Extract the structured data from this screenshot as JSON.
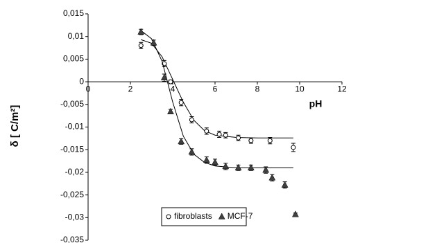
{
  "chart_data": {
    "type": "scatter",
    "xlabel": "pH",
    "ylabel": "δ [ C/m²]",
    "xlim": [
      0,
      12
    ],
    "xticks": [
      0,
      2,
      4,
      6,
      8,
      10,
      12
    ],
    "ylim": [
      -0.035,
      0.015
    ],
    "yticks": [
      {
        "value": 0.015,
        "label": "0,015"
      },
      {
        "value": 0.01,
        "label": "0,01"
      },
      {
        "value": 0.005,
        "label": "0,005"
      },
      0,
      {
        "value": -0.005,
        "label": "-0,005"
      },
      {
        "value": -0.01,
        "label": "-0,01"
      },
      {
        "value": -0.015,
        "label": "-0,015"
      },
      {
        "value": -0.02,
        "label": "-0,02"
      },
      {
        "value": -0.025,
        "label": "-0,025"
      },
      {
        "value": -0.03,
        "label": "-0,03"
      },
      {
        "value": -0.035,
        "label": "-0,035"
      }
    ],
    "series": [
      {
        "name": "fibroblasts",
        "marker": "circle",
        "color": "#000000",
        "x": [
          2.5,
          3.6,
          3.9,
          4.4,
          4.9,
          5.6,
          6.2,
          6.5,
          7.1,
          7.7,
          8.6,
          9.7
        ],
        "values": [
          0.008,
          0.004,
          0.0,
          -0.0046,
          -0.0084,
          -0.0109,
          -0.0116,
          -0.0118,
          -0.0124,
          -0.013,
          -0.013,
          -0.0145
        ],
        "errors": [
          0.0007,
          0.0007,
          0.0004,
          0.0007,
          0.0007,
          0.0007,
          0.0007,
          0.0006,
          0.0006,
          0.0006,
          0.0007,
          0.0009
        ],
        "fit_x": [
          2.5,
          3,
          3.5,
          4,
          4.5,
          5,
          5.5,
          6,
          7,
          8,
          9,
          9.7
        ],
        "fit_values": [
          0.0093,
          0.0085,
          0.0055,
          0.0005,
          -0.0045,
          -0.0085,
          -0.0108,
          -0.0118,
          -0.0123,
          -0.0124,
          -0.0124,
          -0.0124
        ]
      },
      {
        "name": "MCF-7",
        "marker": "triangle",
        "color": "#404040",
        "x": [
          2.5,
          3.1,
          3.6,
          3.9,
          4.4,
          4.9,
          5.6,
          6.0,
          6.5,
          7.1,
          7.7,
          8.4,
          8.7,
          9.3,
          9.8
        ],
        "values": [
          0.011,
          0.0086,
          0.0009,
          -0.0066,
          -0.0132,
          -0.0155,
          -0.0173,
          -0.0178,
          -0.0187,
          -0.019,
          -0.019,
          -0.0195,
          -0.0212,
          -0.0228,
          -0.0293
        ],
        "errors": [
          0.0006,
          0.0006,
          0.0008,
          0.0005,
          0.0006,
          0.0007,
          0.0007,
          0.0007,
          0.0007,
          0.0006,
          0.0006,
          0.0007,
          0.0007,
          0.0007,
          0.0003
        ],
        "fit_x": [
          2.5,
          3,
          3.5,
          4,
          4.5,
          5,
          5.5,
          6,
          7,
          8,
          9,
          9.7
        ],
        "fit_values": [
          0.0113,
          0.0095,
          0.0045,
          -0.0045,
          -0.012,
          -0.016,
          -0.0178,
          -0.0186,
          -0.019,
          -0.019,
          -0.019,
          -0.019
        ]
      }
    ]
  }
}
